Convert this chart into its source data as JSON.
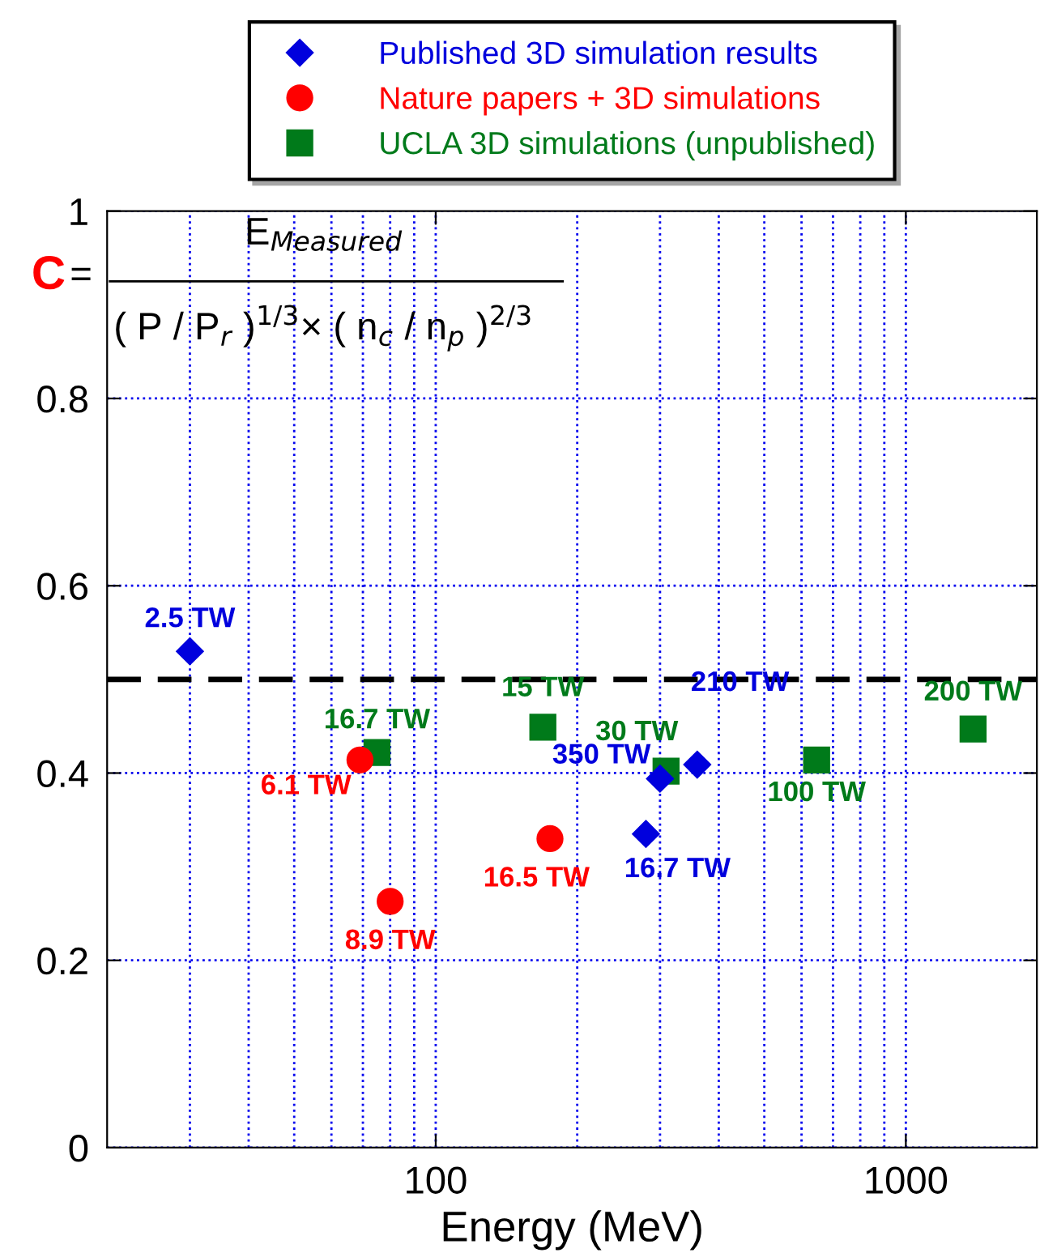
{
  "chart_data": {
    "type": "scatter",
    "xlabel": "Energy (MeV)",
    "log": "x",
    "xlim": [
      20,
      1900
    ],
    "xticks": [
      {
        "value": 30,
        "label": null
      },
      {
        "value": 40,
        "label": null
      },
      {
        "value": 50,
        "label": null
      },
      {
        "value": 60,
        "label": null
      },
      {
        "value": 70,
        "label": null
      },
      {
        "value": 80,
        "label": null
      },
      {
        "value": 90,
        "label": null
      },
      100,
      {
        "value": 200,
        "label": null
      },
      {
        "value": 300,
        "label": null
      },
      {
        "value": 400,
        "label": null
      },
      {
        "value": 500,
        "label": null
      },
      {
        "value": 600,
        "label": null
      },
      {
        "value": 700,
        "label": null
      },
      {
        "value": 800,
        "label": null
      },
      {
        "value": 900,
        "label": null
      },
      1000
    ],
    "ylim": [
      0,
      1
    ],
    "yticks": [
      0,
      0.2,
      0.4,
      0.6,
      0.8,
      1
    ],
    "grid": true,
    "legend": "top",
    "series": [
      {
        "name": "Published 3D simulation results",
        "color": "#0000dd",
        "marker": "diamond",
        "x": [
          30,
          280,
          300,
          360
        ],
        "values": [
          0.53,
          0.335,
          0.394,
          0.409
        ]
      },
      {
        "name": "Nature papers + 3D simulations",
        "color": "#ff0000",
        "marker": "circle",
        "x": [
          69,
          80,
          175
        ],
        "values": [
          0.414,
          0.263,
          0.33
        ]
      },
      {
        "name": "UCLA 3D simulations (unpublished)",
        "color": "#007a1a",
        "marker": "square",
        "x": [
          75,
          169,
          309,
          646,
          1390
        ],
        "values": [
          0.422,
          0.449,
          0.402,
          0.414,
          0.447
        ]
      }
    ],
    "ref_lines": [
      {
        "axis": "y",
        "value": 0.5,
        "color": "#000000",
        "line_style": "dashed"
      }
    ],
    "annotations": [
      "C",
      "=",
      "E$_{Measured}$",
      "( P / P$_{r}$ )$^{1/3}$× ( n$_{c}$ / n$_{p}$ )$^{2/3}$",
      {
        "text": "2.5 TW",
        "x": 30,
        "y": 0.53
      },
      {
        "text": "16.7 TW",
        "x": 280,
        "y": 0.335
      },
      {
        "text": "350 TW",
        "x": 300,
        "y": 0.394
      },
      {
        "text": "210 TW",
        "x": 360,
        "y": 0.409
      },
      {
        "text": "6.1 TW",
        "x": 69,
        "y": 0.414
      },
      {
        "text": "8.9 TW",
        "x": 80,
        "y": 0.263
      },
      {
        "text": "16.5 TW",
        "x": 175,
        "y": 0.33
      },
      {
        "text": "16.7 TW",
        "x": 75,
        "y": 0.422
      },
      {
        "text": "15 TW",
        "x": 169,
        "y": 0.449
      },
      {
        "text": "30 TW",
        "x": 309,
        "y": 0.402
      },
      {
        "text": "100 TW",
        "x": 646,
        "y": 0.414
      },
      {
        "text": "200 TW",
        "x": 1390,
        "y": 0.447
      }
    ]
  }
}
